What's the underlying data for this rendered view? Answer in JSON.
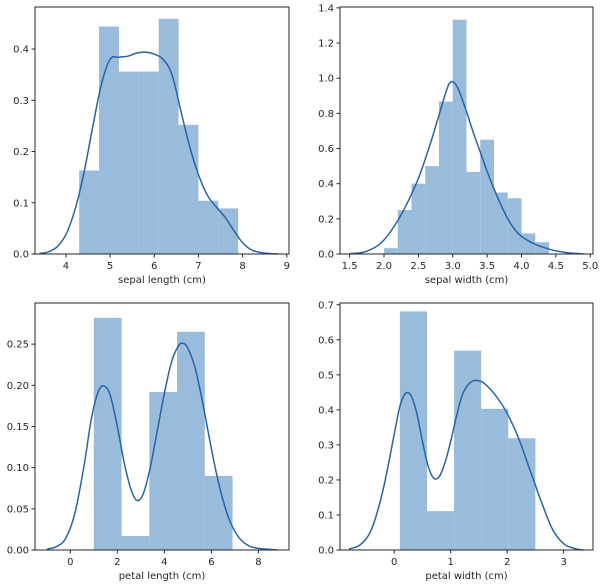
{
  "chart_data": [
    {
      "type": "bar",
      "subtype": "histogram-with-kde",
      "title": "",
      "xlabel": "sepal length (cm)",
      "ylabel": "",
      "xlim": [
        3.3,
        9.05
      ],
      "ylim": [
        0,
        0.482
      ],
      "xticks": [
        4,
        5,
        6,
        7,
        8,
        9
      ],
      "xtick_labels": [
        "4",
        "5",
        "6",
        "7",
        "8",
        "9"
      ],
      "yticks": [
        0.0,
        0.1,
        0.2,
        0.3,
        0.4
      ],
      "ytick_labels": [
        "0.0",
        "0.1",
        "0.2",
        "0.3",
        "0.4"
      ],
      "grid": false,
      "bins": {
        "edges": [
          4.3,
          4.75,
          5.2,
          5.65,
          6.1,
          6.55,
          7.0,
          7.45,
          7.9
        ],
        "values": [
          0.163,
          0.444,
          0.356,
          0.356,
          0.459,
          0.252,
          0.104,
          0.089
        ]
      },
      "kde": {
        "x": [
          3.4,
          3.6,
          3.8,
          4.0,
          4.2,
          4.4,
          4.6,
          4.8,
          5.0,
          5.2,
          5.4,
          5.6,
          5.8,
          6.0,
          6.2,
          6.4,
          6.6,
          6.8,
          7.0,
          7.2,
          7.4,
          7.6,
          7.8,
          8.0,
          8.2,
          8.4,
          8.6,
          8.8
        ],
        "y": [
          0.001,
          0.004,
          0.014,
          0.038,
          0.085,
          0.155,
          0.245,
          0.33,
          0.38,
          0.384,
          0.386,
          0.392,
          0.394,
          0.39,
          0.38,
          0.35,
          0.28,
          0.21,
          0.155,
          0.115,
          0.092,
          0.072,
          0.046,
          0.022,
          0.008,
          0.003,
          0.001,
          0.0
        ]
      },
      "colors": {
        "bar": "#99bbdc",
        "kde": "#2a64a0"
      }
    },
    {
      "type": "bar",
      "subtype": "histogram-with-kde",
      "title": "",
      "xlabel": "sepal width (cm)",
      "ylabel": "",
      "xlim": [
        1.36,
        5.04
      ],
      "ylim": [
        0,
        1.405
      ],
      "xticks": [
        1.5,
        2.0,
        2.5,
        3.0,
        3.5,
        4.0,
        4.5,
        5.0
      ],
      "xtick_labels": [
        "1.5",
        "2.0",
        "2.5",
        "3.0",
        "3.5",
        "4.0",
        "4.5",
        "5.0"
      ],
      "yticks": [
        0.0,
        0.2,
        0.4,
        0.6,
        0.8,
        1.0,
        1.2,
        1.4
      ],
      "ytick_labels": [
        "0.0",
        "0.2",
        "0.4",
        "0.6",
        "0.8",
        "1.0",
        "1.2",
        "1.4"
      ],
      "grid": false,
      "bins": {
        "edges": [
          2.0,
          2.2,
          2.4,
          2.6,
          2.8,
          3.0,
          3.2,
          3.4,
          3.6,
          3.8,
          4.0,
          4.2,
          4.4
        ],
        "values": [
          0.033,
          0.25,
          0.4,
          0.5,
          0.867,
          1.333,
          0.467,
          0.65,
          0.35,
          0.317,
          0.117,
          0.067
        ]
      },
      "kde": {
        "x": [
          1.5,
          1.7,
          1.9,
          2.0,
          2.1,
          2.2,
          2.3,
          2.4,
          2.5,
          2.6,
          2.7,
          2.8,
          2.9,
          2.95,
          3.0,
          3.05,
          3.1,
          3.2,
          3.3,
          3.4,
          3.5,
          3.6,
          3.7,
          3.8,
          3.9,
          4.0,
          4.1,
          4.2,
          4.3,
          4.4,
          4.5,
          4.7,
          4.9
        ],
        "y": [
          0.002,
          0.01,
          0.045,
          0.08,
          0.13,
          0.19,
          0.26,
          0.34,
          0.43,
          0.54,
          0.66,
          0.79,
          0.92,
          0.97,
          0.98,
          0.96,
          0.92,
          0.81,
          0.69,
          0.58,
          0.47,
          0.37,
          0.28,
          0.2,
          0.14,
          0.1,
          0.075,
          0.055,
          0.04,
          0.028,
          0.018,
          0.006,
          0.001
        ]
      },
      "colors": {
        "bar": "#99bbdc",
        "kde": "#2a64a0"
      }
    },
    {
      "type": "bar",
      "subtype": "histogram-with-kde",
      "title": "",
      "xlabel": "petal length (cm)",
      "ylabel": "",
      "xlim": [
        -1.5,
        9.3
      ],
      "ylim": [
        0,
        0.3
      ],
      "xticks": [
        0,
        2,
        4,
        6,
        8
      ],
      "xtick_labels": [
        "0",
        "2",
        "4",
        "6",
        "8"
      ],
      "yticks": [
        0.0,
        0.05,
        0.1,
        0.15,
        0.2,
        0.25
      ],
      "ytick_labels": [
        "0.00",
        "0.05",
        "0.10",
        "0.15",
        "0.20",
        "0.25"
      ],
      "grid": false,
      "bins": {
        "edges": [
          1.0,
          2.18,
          3.36,
          4.54,
          5.72,
          6.9
        ],
        "values": [
          0.282,
          0.017,
          0.192,
          0.265,
          0.09
        ]
      },
      "kde": {
        "x": [
          -1.0,
          -0.6,
          -0.2,
          0.2,
          0.6,
          0.9,
          1.2,
          1.45,
          1.7,
          2.0,
          2.3,
          2.6,
          2.85,
          3.1,
          3.4,
          3.7,
          4.0,
          4.3,
          4.6,
          4.8,
          5.0,
          5.3,
          5.6,
          5.9,
          6.2,
          6.5,
          6.8,
          7.2,
          7.6,
          8.0,
          8.4,
          8.8
        ],
        "y": [
          0.001,
          0.004,
          0.014,
          0.045,
          0.105,
          0.16,
          0.193,
          0.199,
          0.188,
          0.15,
          0.105,
          0.072,
          0.06,
          0.068,
          0.1,
          0.145,
          0.19,
          0.228,
          0.248,
          0.251,
          0.245,
          0.222,
          0.183,
          0.138,
          0.095,
          0.06,
          0.034,
          0.014,
          0.005,
          0.002,
          0.001,
          0.0
        ]
      },
      "colors": {
        "bar": "#99bbdc",
        "kde": "#2a64a0"
      }
    },
    {
      "type": "bar",
      "subtype": "histogram-with-kde",
      "title": "",
      "xlabel": "petal width (cm)",
      "ylabel": "",
      "xlim": [
        -0.96,
        3.52
      ],
      "ylim": [
        0,
        0.705
      ],
      "xticks": [
        0,
        1,
        2,
        3
      ],
      "xtick_labels": [
        "0",
        "1",
        "2",
        "3"
      ],
      "yticks": [
        0.0,
        0.1,
        0.2,
        0.3,
        0.4,
        0.5,
        0.6,
        0.7
      ],
      "ytick_labels": [
        "0.0",
        "0.1",
        "0.2",
        "0.3",
        "0.4",
        "0.5",
        "0.6",
        "0.7"
      ],
      "grid": false,
      "bins": {
        "edges": [
          0.1,
          0.58,
          1.06,
          1.54,
          2.02,
          2.5
        ],
        "values": [
          0.681,
          0.111,
          0.569,
          0.403,
          0.319
        ]
      },
      "kde": {
        "x": [
          -0.8,
          -0.6,
          -0.4,
          -0.2,
          0.0,
          0.1,
          0.2,
          0.3,
          0.4,
          0.5,
          0.6,
          0.7,
          0.8,
          0.9,
          1.0,
          1.1,
          1.2,
          1.3,
          1.4,
          1.5,
          1.6,
          1.8,
          2.0,
          2.2,
          2.4,
          2.5,
          2.6,
          2.8,
          3.0,
          3.2,
          3.35
        ],
        "y": [
          0.003,
          0.015,
          0.06,
          0.17,
          0.33,
          0.41,
          0.447,
          0.44,
          0.39,
          0.31,
          0.24,
          0.205,
          0.21,
          0.25,
          0.31,
          0.38,
          0.44,
          0.47,
          0.483,
          0.483,
          0.475,
          0.44,
          0.39,
          0.32,
          0.23,
          0.185,
          0.14,
          0.06,
          0.018,
          0.004,
          0.0
        ]
      },
      "colors": {
        "bar": "#99bbdc",
        "kde": "#2a64a0"
      }
    }
  ]
}
